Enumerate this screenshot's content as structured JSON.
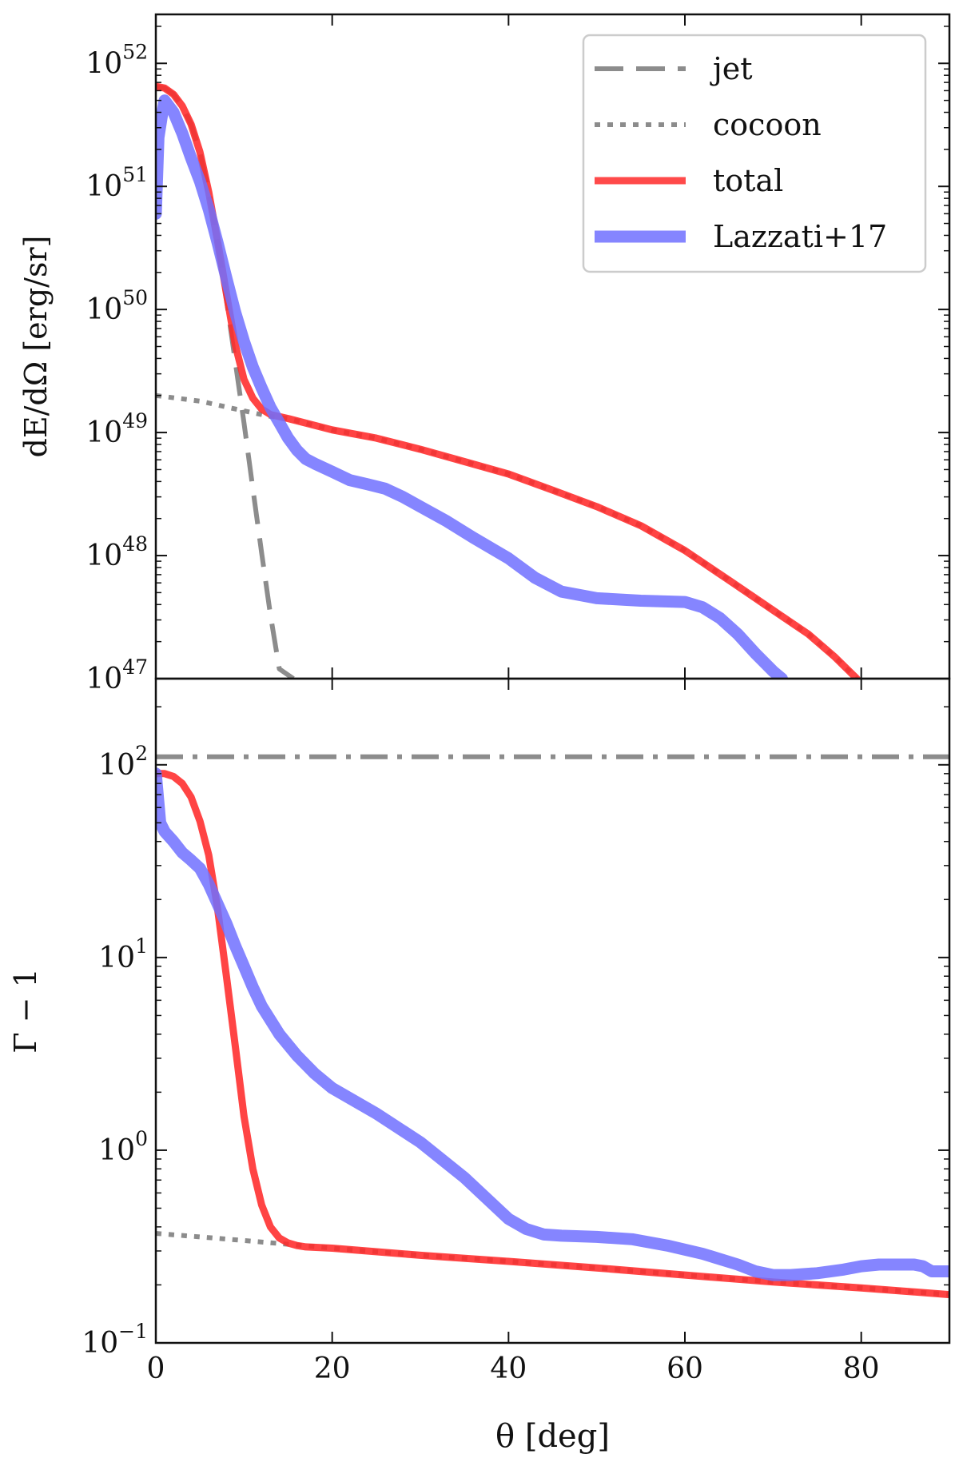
{
  "chart_data": [
    {
      "type": "line",
      "panel": "top",
      "ylabel": "dE/dΩ [erg/sr]",
      "yscale": "log",
      "xlim": [
        0,
        90
      ],
      "ylim": [
        1e+47,
        2.5e+52
      ],
      "xticks": [
        0,
        20,
        40,
        60,
        80
      ],
      "ytick_exponents": [
        47,
        48,
        49,
        50,
        51,
        52
      ],
      "legend": {
        "position": "top-right",
        "entries": [
          "jet",
          "cocoon",
          "total",
          "Lazzati+17"
        ]
      },
      "series": [
        {
          "name": "jet",
          "style": "dashed",
          "color": "#8c8c8c",
          "x": [
            0,
            1,
            2,
            3,
            4,
            5,
            6,
            7,
            8,
            9,
            10,
            11,
            12,
            13,
            14,
            15.6
          ],
          "y": [
            6.5e+51,
            6.3e+51,
            5.6e+51,
            4.5e+51,
            3.2e+51,
            1.9e+51,
            9e+50,
            3.5e+50,
            1.2e+50,
            3.8e+49,
            1.2e+49,
            3.5e+48,
            1.05e+48,
            3.3e+47,
            1.2e+47,
            1e+47
          ]
        },
        {
          "name": "cocoon",
          "style": "dotted",
          "color": "#8c8c8c",
          "x": [
            0,
            5,
            10,
            13,
            15,
            20,
            25,
            30,
            35,
            40,
            45,
            50,
            55,
            60,
            65,
            70,
            74,
            77,
            79.5
          ],
          "y": [
            2e+49,
            1.8e+49,
            1.5e+49,
            1.35e+49,
            1.3e+49,
            1.05e+49,
            9e+48,
            7.3e+48,
            5.8e+48,
            4.6e+48,
            3.4e+48,
            2.5e+48,
            1.75e+48,
            1.1e+48,
            6.3e+47,
            3.6e+47,
            2.3e+47,
            1.5e+47,
            1e+47
          ]
        },
        {
          "name": "total",
          "style": "solid",
          "color": "#ff2a2a",
          "x": [
            0,
            1,
            2,
            3,
            4,
            5,
            6,
            7,
            8,
            9,
            10,
            11,
            12,
            13,
            15,
            20,
            25,
            30,
            35,
            40,
            45,
            50,
            55,
            60,
            65,
            70,
            74,
            77,
            79.5
          ],
          "y": [
            6.5e+51,
            6.3e+51,
            5.6e+51,
            4.5e+51,
            3.2e+51,
            1.9e+51,
            9e+50,
            3.6e+50,
            1.35e+50,
            5.2e+49,
            2.7e+49,
            1.9e+49,
            1.55e+49,
            1.4e+49,
            1.3e+49,
            1.05e+49,
            9e+48,
            7.3e+48,
            5.8e+48,
            4.6e+48,
            3.4e+48,
            2.5e+48,
            1.75e+48,
            1.1e+48,
            6.3e+47,
            3.6e+47,
            2.3e+47,
            1.5e+47,
            1e+47
          ]
        },
        {
          "name": "Lazzati+17",
          "style": "solid",
          "color": "#7070ff",
          "x": [
            0,
            0.3,
            0.7,
            1,
            2,
            3,
            4,
            5,
            6,
            7,
            8,
            9,
            10,
            11,
            12,
            13,
            14,
            15,
            16,
            17,
            18,
            20,
            22,
            24,
            26,
            28,
            30,
            33,
            36,
            40,
            43,
            46,
            50,
            55,
            60,
            62,
            64,
            66,
            68,
            70,
            71
          ],
          "y": [
            6e+50,
            2.5e+51,
            3.8e+51,
            5e+51,
            4e+51,
            2.7e+51,
            1.7e+51,
            1.1e+51,
            6.5e+50,
            3.5e+50,
            1.8e+50,
            9.5e+49,
            5.5e+49,
            3.4e+49,
            2.3e+49,
            1.6e+49,
            1.2e+49,
            9e+48,
            7.2e+48,
            6.1e+48,
            5.6e+48,
            4.8e+48,
            4.1e+48,
            3.8e+48,
            3.5e+48,
            3e+48,
            2.5e+48,
            1.9e+48,
            1.4e+48,
            9.5e+47,
            6.6e+47,
            5.1e+47,
            4.5e+47,
            4.3e+47,
            4.2e+47,
            3.8e+47,
            3.1e+47,
            2.3e+47,
            1.6e+47,
            1.15e+47,
            1e+47
          ]
        }
      ]
    },
    {
      "type": "line",
      "panel": "bottom",
      "xlabel": "θ [deg]",
      "ylabel": "Γ − 1",
      "yscale": "log",
      "xlim": [
        0,
        90
      ],
      "ylim": [
        0.1,
        280
      ],
      "xticks": [
        0,
        20,
        40,
        60,
        80
      ],
      "ytick_exponents": [
        -1,
        0,
        1,
        2
      ],
      "series": [
        {
          "name": "jet",
          "style": "dashdot",
          "color": "#8c8c8c",
          "x": [
            0,
            90
          ],
          "y": [
            110,
            110
          ]
        },
        {
          "name": "cocoon",
          "style": "dotted",
          "color": "#8c8c8c",
          "x": [
            0,
            5,
            10,
            15,
            20,
            30,
            40,
            50,
            60,
            70,
            80,
            90
          ],
          "y": [
            0.37,
            0.355,
            0.34,
            0.325,
            0.31,
            0.285,
            0.265,
            0.245,
            0.225,
            0.207,
            0.193,
            0.178
          ]
        },
        {
          "name": "total",
          "style": "solid",
          "color": "#ff2a2a",
          "x": [
            0,
            1,
            2,
            3,
            4,
            5,
            6,
            7,
            8,
            9,
            10,
            11,
            12,
            13,
            14,
            15,
            16,
            17,
            20,
            30,
            40,
            50,
            60,
            70,
            80,
            90
          ],
          "y": [
            90,
            90,
            87,
            80,
            68,
            51,
            34,
            18,
            8,
            3.5,
            1.5,
            0.8,
            0.52,
            0.4,
            0.35,
            0.33,
            0.32,
            0.315,
            0.31,
            0.285,
            0.265,
            0.245,
            0.225,
            0.207,
            0.193,
            0.178
          ]
        },
        {
          "name": "Lazzati+17",
          "style": "solid",
          "color": "#7070ff",
          "x": [
            0,
            0.5,
            1,
            2,
            3,
            4,
            5,
            6,
            7,
            8,
            9,
            10,
            11,
            12,
            14,
            16,
            18,
            20,
            25,
            30,
            35,
            40,
            42,
            44,
            46,
            50,
            54,
            58,
            62,
            66,
            68,
            70,
            72,
            75,
            78,
            80,
            82,
            84,
            86,
            87,
            88,
            90
          ],
          "y": [
            90,
            50,
            45,
            40,
            35,
            32,
            29,
            24,
            19,
            15,
            11.5,
            9,
            7,
            5.6,
            4,
            3.1,
            2.5,
            2.1,
            1.55,
            1.1,
            0.72,
            0.44,
            0.39,
            0.365,
            0.36,
            0.355,
            0.345,
            0.32,
            0.29,
            0.255,
            0.235,
            0.225,
            0.225,
            0.23,
            0.24,
            0.25,
            0.255,
            0.255,
            0.255,
            0.25,
            0.235,
            0.235
          ]
        }
      ]
    }
  ]
}
